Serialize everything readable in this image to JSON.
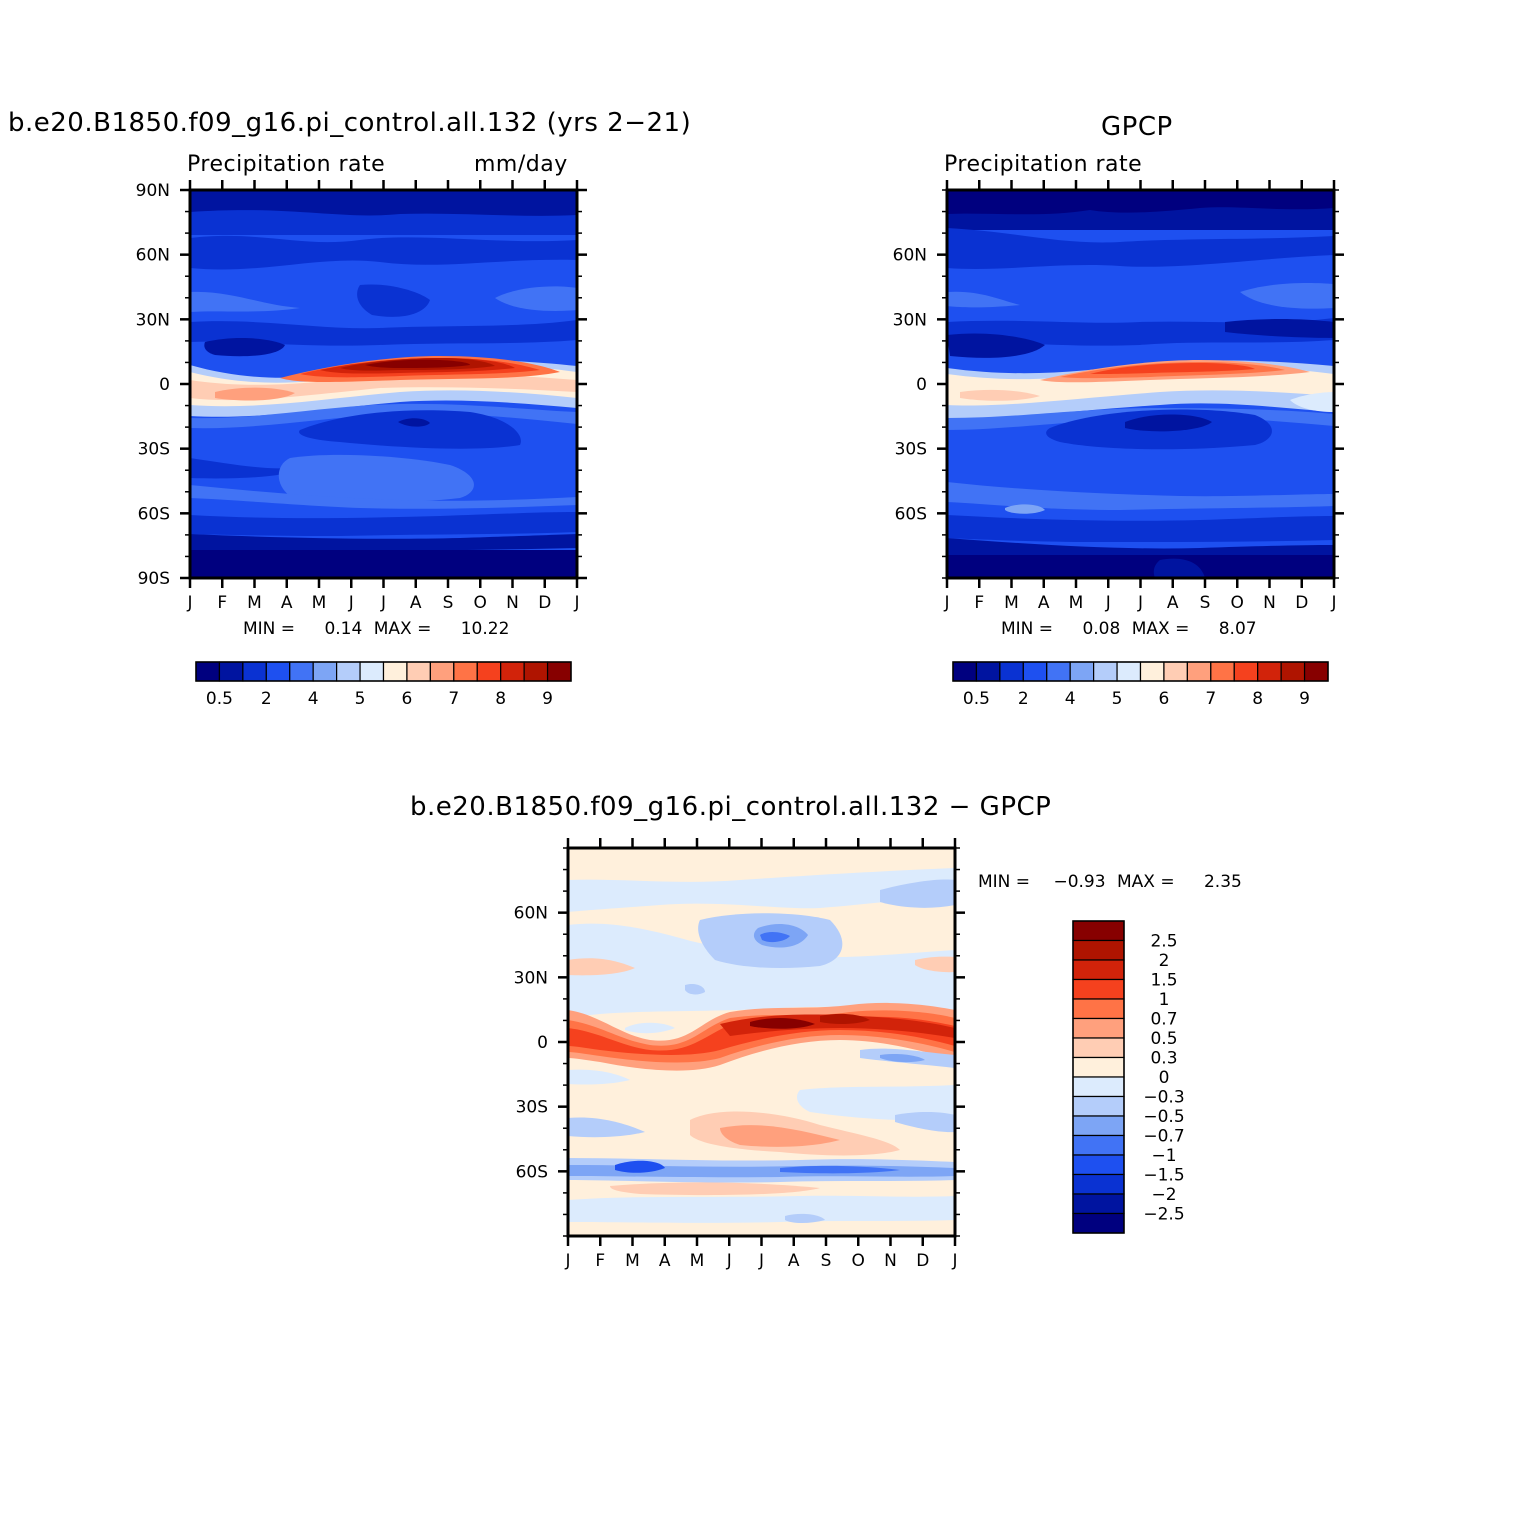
{
  "chart_data": [
    {
      "type": "heatmap",
      "title": "b.e20.B1850.f09_g16.pi_control.all.132 (yrs 2−21)",
      "left_label": "Precipitation rate",
      "right_label": "mm/day",
      "x_ticks": [
        "J",
        "F",
        "M",
        "A",
        "M",
        "J",
        "J",
        "A",
        "S",
        "O",
        "N",
        "D",
        "J"
      ],
      "y_ticks": [
        "90N",
        "60N",
        "30N",
        "0",
        "30S",
        "60S",
        "90S"
      ],
      "ylim": [
        -90,
        90
      ],
      "min_label": "MIN =",
      "min_value": "0.14",
      "max_label": "MAX =",
      "max_value": "10.22",
      "colorbar_labels": [
        "0.5",
        "2",
        "4",
        "5",
        "6",
        "7",
        "8",
        "9"
      ]
    },
    {
      "type": "heatmap",
      "title": "GPCP",
      "left_label": "Precipitation rate",
      "x_ticks": [
        "J",
        "F",
        "M",
        "A",
        "M",
        "J",
        "J",
        "A",
        "S",
        "O",
        "N",
        "D",
        "J"
      ],
      "y_ticks": [
        "60N",
        "30N",
        "0",
        "30S",
        "60S"
      ],
      "ylim": [
        -90,
        90
      ],
      "min_label": "MIN =",
      "min_value": "0.08",
      "max_label": "MAX =",
      "max_value": "8.07",
      "colorbar_labels": [
        "0.5",
        "2",
        "4",
        "5",
        "6",
        "7",
        "8",
        "9"
      ]
    },
    {
      "type": "heatmap",
      "title": "b.e20.B1850.f09_g16.pi_control.all.132 − GPCP",
      "x_ticks": [
        "J",
        "F",
        "M",
        "A",
        "M",
        "J",
        "J",
        "A",
        "S",
        "O",
        "N",
        "D",
        "J"
      ],
      "y_ticks": [
        "60N",
        "30N",
        "0",
        "30S",
        "60S"
      ],
      "ylim": [
        -90,
        90
      ],
      "min_label": "MIN =",
      "min_value": "−0.93",
      "max_label": "MAX =",
      "max_value": "2.35",
      "colorbar_labels": [
        "2.5",
        "2",
        "1.5",
        "1",
        "0.7",
        "0.5",
        "0.3",
        "0",
        "−0.3",
        "−0.5",
        "−0.7",
        "−1",
        "−1.5",
        "−2",
        "−2.5"
      ]
    }
  ],
  "colors": {
    "abs_palette": [
      "#00007f",
      "#0014a0",
      "#0a32d2",
      "#1e50f0",
      "#4173f5",
      "#7da5f5",
      "#b4cdfa",
      "#dcebfd",
      "#fff0dc",
      "#ffcdb4",
      "#ffa07d",
      "#ff7346",
      "#f5411e",
      "#d2230a",
      "#af1400",
      "#870000"
    ],
    "diff_palette": [
      "#00007f",
      "#0014a0",
      "#0a32d2",
      "#1e50f0",
      "#4173f5",
      "#7da5f5",
      "#b4cdfa",
      "#dcebfd",
      "#fff0dc",
      "#ffcdb4",
      "#ffa07d",
      "#ff7346",
      "#f5411e",
      "#d2230a",
      "#af1400",
      "#870000"
    ]
  }
}
